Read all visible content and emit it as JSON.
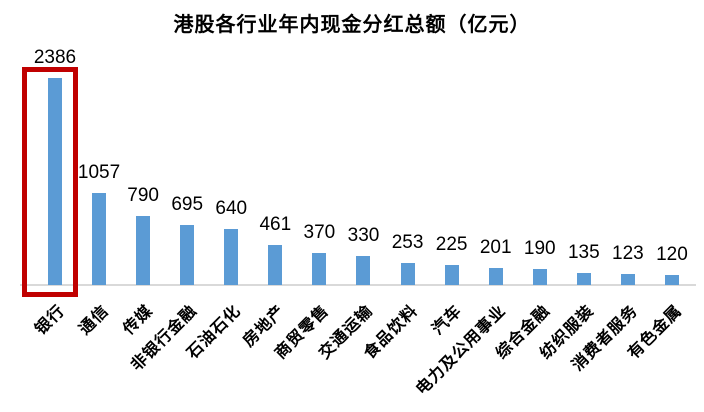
{
  "chart_data": {
    "type": "bar",
    "title": "港股各行业年内现金分红总额（亿元）",
    "categories": [
      "银行",
      "通信",
      "传媒",
      "非银行金融",
      "石油石化",
      "房地产",
      "商贸零售",
      "交通运输",
      "食品饮料",
      "汽车",
      "电力及公用事业",
      "综合金融",
      "纺织服装",
      "消费者服务",
      "有色金属"
    ],
    "values": [
      2386,
      1057,
      790,
      695,
      640,
      461,
      370,
      330,
      253,
      225,
      201,
      190,
      135,
      123,
      120
    ],
    "data_labels": true,
    "grid": false,
    "legend": false,
    "ylim": [
      0,
      2500
    ],
    "xlabel": "",
    "ylabel": "",
    "highlight": {
      "category": "银行",
      "style": "red-outline-box"
    },
    "colors": {
      "bar": "#5B9BD5",
      "highlight_box": "#C00000",
      "axis_line": "#D9D9D9",
      "text": "#000000",
      "background": "#FFFFFF"
    }
  }
}
